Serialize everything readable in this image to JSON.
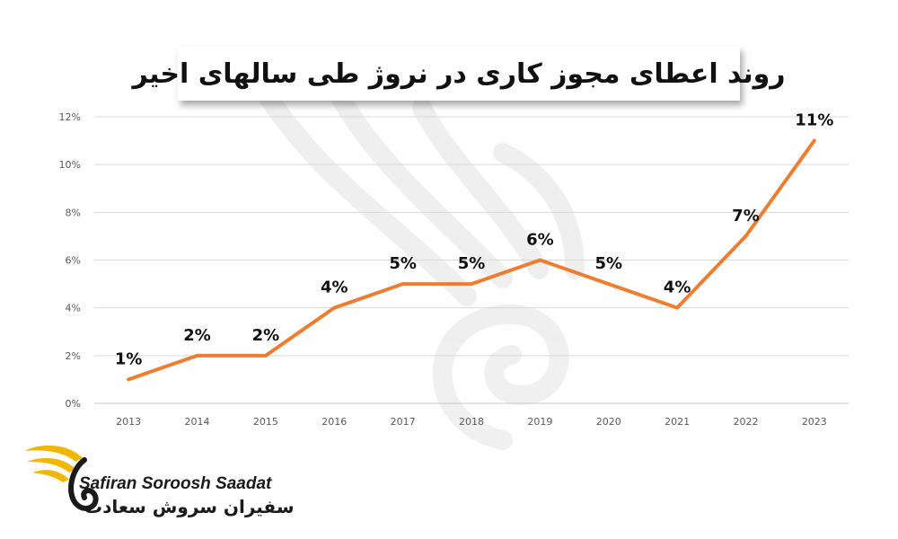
{
  "chart_data": {
    "type": "line",
    "title": "روند اعطای مجوز کاری در نروژ طی سالهای اخیر",
    "categories": [
      "2013",
      "2014",
      "2015",
      "2016",
      "2017",
      "2018",
      "2019",
      "2020",
      "2021",
      "2022",
      "2023"
    ],
    "series": [
      {
        "values": [
          1,
          2,
          2,
          4,
          5,
          5,
          6,
          5,
          4,
          7,
          11
        ],
        "labels": [
          "1%",
          "2%",
          "2%",
          "4%",
          "5%",
          "5%",
          "6%",
          "5%",
          "4%",
          "7%",
          "11%"
        ],
        "color": "#ED7D31"
      }
    ],
    "ylim": [
      0,
      12
    ],
    "yticks": [
      0,
      2,
      4,
      6,
      8,
      10,
      12
    ],
    "ytick_labels": [
      "0%",
      "2%",
      "4%",
      "6%",
      "8%",
      "10%",
      "12%"
    ],
    "grid": true,
    "xlabel": "",
    "ylabel": ""
  },
  "logo": {
    "text_en": "Safiran Soroosh Saadat",
    "text_fa": "سفیران سروش سعادت",
    "accent_color": "#F2B705"
  }
}
